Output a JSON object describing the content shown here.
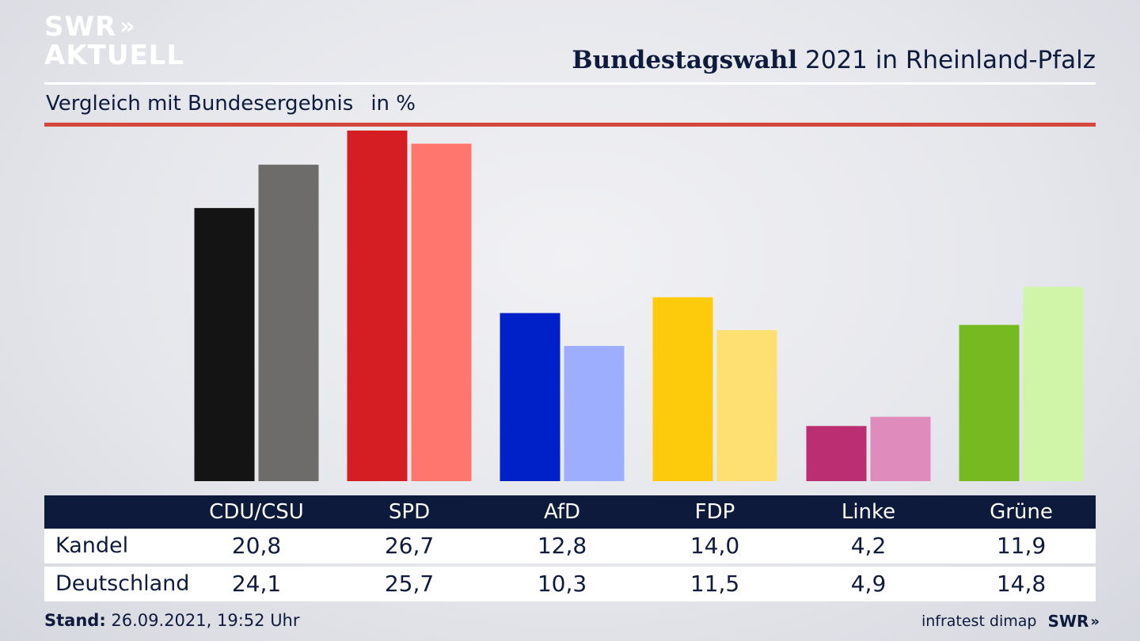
{
  "logo": {
    "line1": "SWR",
    "line2": "AKTUELL",
    "chevrons": "»"
  },
  "header": {
    "title_bold": "Bundestagswahl",
    "title_rest": "2021 in Rheinland-Pfalz",
    "subtitle": "Vergleich mit Bundesergebnis",
    "unit": "in %"
  },
  "colors": {
    "accent_red": "#d5473b",
    "navy": "#0d1a3b"
  },
  "chart_data": {
    "type": "bar",
    "categories": [
      "CDU/CSU",
      "SPD",
      "AfD",
      "FDP",
      "Linke",
      "Grüne"
    ],
    "series": [
      {
        "name": "Kandel",
        "values": [
          20.8,
          26.7,
          12.8,
          14.0,
          4.2,
          11.9
        ],
        "colors": [
          "#141414",
          "#d41e23",
          "#0020c8",
          "#fdca0c",
          "#bb2e72",
          "#76b921"
        ]
      },
      {
        "name": "Deutschland",
        "values": [
          24.1,
          25.7,
          10.3,
          11.5,
          4.9,
          14.8
        ],
        "colors": [
          "#6d6c6a",
          "#ff766f",
          "#9eaeff",
          "#fddf72",
          "#df8bbb",
          "#d1f5a8"
        ]
      }
    ],
    "value_labels": [
      [
        "20,8",
        "26,7",
        "12,8",
        "14,0",
        "4,2",
        "11,9"
      ],
      [
        "24,1",
        "25,7",
        "10,3",
        "11,5",
        "4,9",
        "14,8"
      ]
    ],
    "ylim": [
      0,
      27
    ]
  },
  "footer": {
    "stand_label": "Stand:",
    "stand_value": "26.09.2021, 19:52 Uhr",
    "source": "infratest dimap",
    "brand": "SWR",
    "brand_chevrons": "»"
  }
}
